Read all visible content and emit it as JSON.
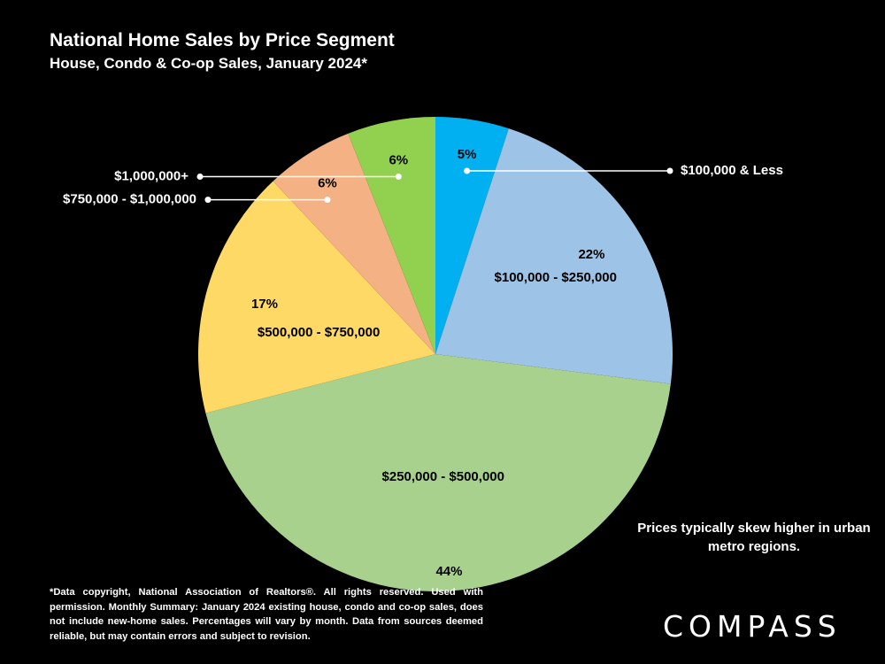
{
  "title": "National Home Sales by Price Segment",
  "subtitle": "House, Condo & Co-op Sales, January 2024*",
  "note": "Prices typically skew higher in urban metro regions.",
  "footnote": "*Data copyright, National Association of Realtors®. All rights reserved. Used with permission. Monthly Summary:  January 2024 existing house, condo and co-op sales, does not include new-home sales. Percentages will vary by month. Data from sources deemed reliable, but may contain errors and subject to revision.",
  "logo": "COMPASS",
  "chart_data": {
    "type": "pie",
    "title": "National Home Sales by Price Segment",
    "subtitle": "House, Condo & Co-op Sales, January 2024*",
    "categories": [
      "$100,000 & Less",
      "$100,000 - $250,000",
      "$250,000 - $500,000",
      "$500,000 - $750,000",
      "$750,000 - $1,000,000",
      "$1,000,000+"
    ],
    "values": [
      5,
      22,
      44,
      17,
      6,
      6
    ],
    "value_labels": [
      "5%",
      "22%",
      "44%",
      "17%",
      "6%",
      "6%"
    ],
    "colors": [
      "#00B0F0",
      "#9DC3E6",
      "#A9D18E",
      "#FFD966",
      "#F4B183",
      "#92D050"
    ],
    "start": "12 o'clock",
    "direction": "clockwise"
  }
}
